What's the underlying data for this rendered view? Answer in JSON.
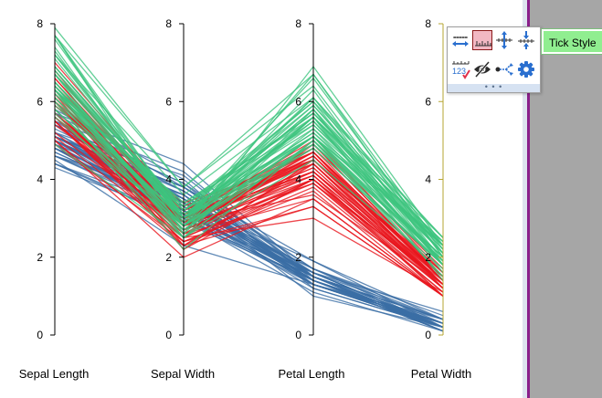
{
  "chart_data": {
    "type": "parallel-coordinates",
    "dimensions": [
      "Sepal Length",
      "Sepal Width",
      "Petal Length",
      "Petal Width"
    ],
    "axis_range": [
      0,
      8
    ],
    "axis_ticks": [
      "0",
      "2",
      "4",
      "6",
      "8"
    ],
    "series": [
      {
        "color": "#3b6ea5",
        "profiles": [
          [
            5.1,
            3.5,
            1.4,
            0.2
          ],
          [
            4.9,
            3.0,
            1.4,
            0.2
          ],
          [
            4.7,
            3.2,
            1.3,
            0.2
          ],
          [
            4.6,
            3.1,
            1.5,
            0.2
          ],
          [
            5.0,
            3.6,
            1.4,
            0.2
          ],
          [
            5.4,
            3.9,
            1.7,
            0.4
          ],
          [
            4.6,
            3.4,
            1.4,
            0.3
          ],
          [
            5.0,
            3.4,
            1.5,
            0.2
          ],
          [
            4.4,
            2.9,
            1.4,
            0.2
          ],
          [
            4.9,
            3.1,
            1.5,
            0.1
          ],
          [
            5.4,
            3.7,
            1.5,
            0.2
          ],
          [
            4.8,
            3.4,
            1.6,
            0.2
          ],
          [
            4.8,
            3.0,
            1.4,
            0.1
          ],
          [
            4.3,
            3.0,
            1.1,
            0.1
          ],
          [
            5.8,
            4.0,
            1.2,
            0.2
          ],
          [
            5.7,
            4.4,
            1.5,
            0.4
          ],
          [
            5.4,
            3.9,
            1.3,
            0.4
          ],
          [
            5.1,
            3.5,
            1.4,
            0.3
          ],
          [
            5.7,
            3.8,
            1.7,
            0.3
          ],
          [
            5.1,
            3.8,
            1.5,
            0.3
          ],
          [
            5.4,
            3.4,
            1.7,
            0.2
          ],
          [
            5.1,
            3.7,
            1.5,
            0.4
          ],
          [
            4.6,
            3.6,
            1.0,
            0.2
          ],
          [
            5.1,
            3.3,
            1.7,
            0.5
          ],
          [
            4.8,
            3.4,
            1.9,
            0.2
          ],
          [
            5.0,
            3.0,
            1.6,
            0.2
          ],
          [
            5.0,
            3.4,
            1.6,
            0.4
          ],
          [
            5.2,
            3.5,
            1.5,
            0.2
          ],
          [
            5.2,
            3.4,
            1.4,
            0.2
          ],
          [
            4.7,
            3.2,
            1.6,
            0.2
          ],
          [
            4.8,
            3.1,
            1.6,
            0.2
          ],
          [
            5.4,
            3.4,
            1.5,
            0.4
          ],
          [
            5.2,
            4.1,
            1.5,
            0.1
          ],
          [
            5.5,
            4.2,
            1.4,
            0.2
          ],
          [
            4.9,
            3.1,
            1.5,
            0.2
          ],
          [
            5.0,
            3.2,
            1.2,
            0.2
          ],
          [
            5.5,
            3.5,
            1.3,
            0.2
          ],
          [
            4.9,
            3.6,
            1.4,
            0.1
          ],
          [
            4.4,
            3.0,
            1.3,
            0.2
          ],
          [
            5.1,
            3.4,
            1.5,
            0.2
          ],
          [
            5.0,
            3.5,
            1.3,
            0.3
          ],
          [
            4.5,
            2.3,
            1.3,
            0.3
          ],
          [
            4.4,
            3.2,
            1.3,
            0.2
          ],
          [
            5.0,
            3.5,
            1.6,
            0.6
          ],
          [
            5.1,
            3.8,
            1.9,
            0.4
          ],
          [
            4.8,
            3.0,
            1.4,
            0.3
          ],
          [
            5.1,
            3.8,
            1.6,
            0.2
          ],
          [
            4.6,
            3.2,
            1.4,
            0.2
          ],
          [
            5.3,
            3.7,
            1.5,
            0.2
          ],
          [
            5.0,
            3.3,
            1.4,
            0.2
          ]
        ]
      },
      {
        "color": "#e8161e",
        "profiles": [
          [
            7.0,
            3.2,
            4.7,
            1.4
          ],
          [
            6.4,
            3.2,
            4.5,
            1.5
          ],
          [
            6.9,
            3.1,
            4.9,
            1.5
          ],
          [
            5.5,
            2.3,
            4.0,
            1.3
          ],
          [
            6.5,
            2.8,
            4.6,
            1.5
          ],
          [
            5.7,
            2.8,
            4.5,
            1.3
          ],
          [
            6.3,
            3.3,
            4.7,
            1.6
          ],
          [
            4.9,
            2.4,
            3.3,
            1.0
          ],
          [
            6.6,
            2.9,
            4.6,
            1.3
          ],
          [
            5.2,
            2.7,
            3.9,
            1.4
          ],
          [
            5.0,
            2.0,
            3.5,
            1.0
          ],
          [
            5.9,
            3.0,
            4.2,
            1.5
          ],
          [
            6.0,
            2.2,
            4.0,
            1.0
          ],
          [
            6.1,
            2.9,
            4.7,
            1.4
          ],
          [
            5.6,
            2.9,
            3.6,
            1.3
          ],
          [
            6.7,
            3.1,
            4.4,
            1.4
          ],
          [
            5.6,
            3.0,
            4.5,
            1.5
          ],
          [
            5.8,
            2.7,
            4.1,
            1.0
          ],
          [
            6.2,
            2.2,
            4.5,
            1.5
          ],
          [
            5.6,
            2.5,
            3.9,
            1.1
          ],
          [
            5.9,
            3.2,
            4.8,
            1.8
          ],
          [
            6.1,
            2.8,
            4.0,
            1.3
          ],
          [
            6.3,
            2.5,
            4.9,
            1.5
          ],
          [
            6.1,
            2.8,
            4.7,
            1.2
          ],
          [
            6.4,
            2.9,
            4.3,
            1.3
          ],
          [
            6.6,
            3.0,
            4.4,
            1.4
          ],
          [
            6.8,
            2.8,
            4.8,
            1.4
          ],
          [
            6.7,
            3.0,
            5.0,
            1.7
          ],
          [
            6.0,
            2.9,
            4.5,
            1.5
          ],
          [
            5.7,
            2.6,
            3.5,
            1.0
          ],
          [
            5.5,
            2.4,
            3.8,
            1.1
          ],
          [
            5.5,
            2.4,
            3.7,
            1.0
          ],
          [
            5.8,
            2.7,
            3.9,
            1.2
          ],
          [
            6.0,
            2.7,
            5.1,
            1.6
          ],
          [
            5.4,
            3.0,
            4.5,
            1.5
          ],
          [
            6.0,
            3.4,
            4.5,
            1.6
          ],
          [
            6.7,
            3.1,
            4.7,
            1.5
          ],
          [
            6.3,
            2.3,
            4.4,
            1.3
          ],
          [
            5.6,
            3.0,
            4.1,
            1.3
          ],
          [
            5.5,
            2.5,
            4.0,
            1.3
          ],
          [
            5.5,
            2.6,
            4.4,
            1.2
          ],
          [
            6.1,
            3.0,
            4.6,
            1.4
          ],
          [
            5.8,
            2.6,
            4.0,
            1.2
          ],
          [
            5.0,
            2.3,
            3.3,
            1.0
          ],
          [
            5.6,
            2.7,
            4.2,
            1.3
          ],
          [
            5.7,
            3.0,
            4.2,
            1.2
          ],
          [
            5.7,
            2.9,
            4.2,
            1.3
          ],
          [
            6.2,
            2.9,
            4.3,
            1.3
          ],
          [
            5.1,
            2.5,
            3.0,
            1.1
          ],
          [
            5.7,
            2.8,
            4.1,
            1.3
          ]
        ]
      },
      {
        "color": "#3dc47e",
        "profiles": [
          [
            6.3,
            3.3,
            6.0,
            2.5
          ],
          [
            5.8,
            2.7,
            5.1,
            1.9
          ],
          [
            7.1,
            3.0,
            5.9,
            2.1
          ],
          [
            6.3,
            2.9,
            5.6,
            1.8
          ],
          [
            6.5,
            3.0,
            5.8,
            2.2
          ],
          [
            7.6,
            3.0,
            6.6,
            2.1
          ],
          [
            4.9,
            2.5,
            4.5,
            1.7
          ],
          [
            7.3,
            2.9,
            6.3,
            1.8
          ],
          [
            6.7,
            2.5,
            5.8,
            1.8
          ],
          [
            7.2,
            3.6,
            6.1,
            2.5
          ],
          [
            6.5,
            3.2,
            5.1,
            2.0
          ],
          [
            6.4,
            2.7,
            5.3,
            1.9
          ],
          [
            6.8,
            3.0,
            5.5,
            2.1
          ],
          [
            5.7,
            2.5,
            5.0,
            2.0
          ],
          [
            5.8,
            2.8,
            5.1,
            2.4
          ],
          [
            6.4,
            3.2,
            5.3,
            2.3
          ],
          [
            6.5,
            3.0,
            5.5,
            1.8
          ],
          [
            7.7,
            3.8,
            6.7,
            2.2
          ],
          [
            7.7,
            2.6,
            6.9,
            2.3
          ],
          [
            6.0,
            2.2,
            5.0,
            1.5
          ],
          [
            6.9,
            3.2,
            5.7,
            2.3
          ],
          [
            5.6,
            2.8,
            4.9,
            2.0
          ],
          [
            7.7,
            2.8,
            6.7,
            2.0
          ],
          [
            6.3,
            2.7,
            4.9,
            1.8
          ],
          [
            6.7,
            3.3,
            5.7,
            2.1
          ],
          [
            7.2,
            3.2,
            6.0,
            1.8
          ],
          [
            6.2,
            2.8,
            4.8,
            1.8
          ],
          [
            6.1,
            3.0,
            4.9,
            1.8
          ],
          [
            6.4,
            2.8,
            5.6,
            2.1
          ],
          [
            7.2,
            3.0,
            5.8,
            1.6
          ],
          [
            7.4,
            2.8,
            6.1,
            1.9
          ],
          [
            7.9,
            3.8,
            6.4,
            2.0
          ],
          [
            6.4,
            2.8,
            5.6,
            2.2
          ],
          [
            6.3,
            2.8,
            5.1,
            1.5
          ],
          [
            6.1,
            2.6,
            5.6,
            1.4
          ],
          [
            7.7,
            3.0,
            6.1,
            2.3
          ],
          [
            6.3,
            3.4,
            5.6,
            2.4
          ],
          [
            6.4,
            3.1,
            5.5,
            1.8
          ],
          [
            6.0,
            3.0,
            4.8,
            1.8
          ],
          [
            6.9,
            3.1,
            5.4,
            2.1
          ],
          [
            6.7,
            3.1,
            5.6,
            2.4
          ],
          [
            6.9,
            3.1,
            5.1,
            2.3
          ],
          [
            5.8,
            2.7,
            5.1,
            1.9
          ],
          [
            6.8,
            3.2,
            5.9,
            2.3
          ],
          [
            6.7,
            3.3,
            5.7,
            2.5
          ],
          [
            6.7,
            3.0,
            5.2,
            2.3
          ],
          [
            6.3,
            2.5,
            5.0,
            1.9
          ],
          [
            6.5,
            3.0,
            5.2,
            2.0
          ],
          [
            6.2,
            3.4,
            5.4,
            2.3
          ],
          [
            5.9,
            3.0,
            5.1,
            1.8
          ]
        ]
      }
    ]
  },
  "toolbar": {
    "tools": [
      {
        "name": "expand-horizontal-tool",
        "icon": "arrows-horizontal-icon",
        "active": false
      },
      {
        "name": "tick-style-tool",
        "icon": "ruler-ticks-icon",
        "active": true
      },
      {
        "name": "expand-vertical-tool",
        "icon": "arrows-vertical-icon",
        "active": false
      },
      {
        "name": "compress-vertical-tool",
        "icon": "arrows-compress-icon",
        "active": false
      },
      {
        "name": "tick-labels-tool",
        "icon": "ruler-numbers-icon",
        "active": false
      },
      {
        "name": "hide-tool",
        "icon": "eye-slash-icon",
        "active": false
      },
      {
        "name": "share-tool",
        "icon": "share-nodes-icon",
        "active": false
      },
      {
        "name": "settings-tool",
        "icon": "gear-icon",
        "active": false
      }
    ],
    "footer": "• • •",
    "tooltip": "Tick Style"
  },
  "colors": {
    "axis": "#000000",
    "last_axis": "#b6a632",
    "active_tool": "#f2b8c3",
    "tooltip": "#90ee90",
    "tool_blue": "#2a6fcf",
    "side_panel": "#a6a6a6",
    "purple_line": "#8a1f8a"
  }
}
